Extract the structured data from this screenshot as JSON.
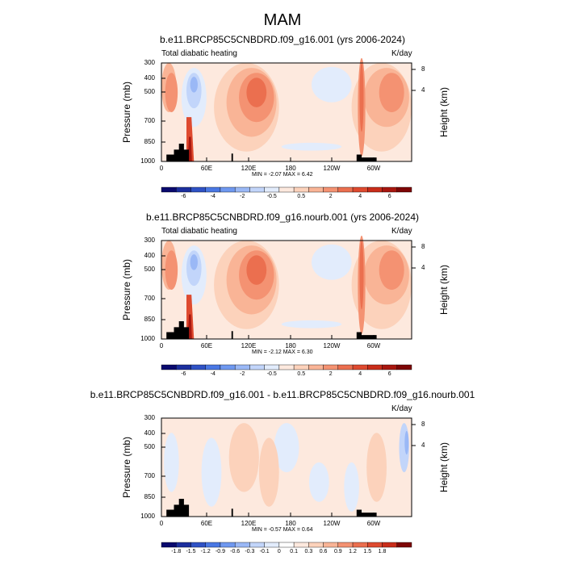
{
  "main_title": "MAM",
  "chart_data": [
    {
      "type": "heatmap",
      "title": "b.e11.BRCP85C5CNBDRD.f09_g16.001 (yrs 2006-2024)",
      "left_string": "Total diabatic heating",
      "units": "K/day",
      "ylabel": "Pressure (mb)",
      "ylabel_right": "Height (km)",
      "yticks": [
        "300",
        "400",
        "500",
        "700",
        "850",
        "1000"
      ],
      "yticks_right": [
        "8",
        "4"
      ],
      "xticks": [
        "0",
        "60E",
        "120E",
        "180",
        "120W",
        "60W"
      ],
      "minmax": "MIN =  -2.07  MAX =   6.42",
      "colorbar_labels": [
        "-6",
        "-4",
        "-2",
        "-0.5",
        "0.5",
        "2",
        "4",
        "6"
      ],
      "colorbar_colors": [
        "#0a0a6e",
        "#1c2f9e",
        "#2f52c5",
        "#4a78e4",
        "#6f98f0",
        "#9ab8f6",
        "#c2d5fa",
        "#e2ecfc",
        "#fde9de",
        "#fcd2bb",
        "#f9b496",
        "#f49272",
        "#eb6f4f",
        "#de4a2f",
        "#c92d1a",
        "#a8170f",
        "#7e0606"
      ],
      "ylim": [
        1000,
        300
      ]
    },
    {
      "type": "heatmap",
      "title": "b.e11.BRCP85C5CNBDRD.f09_g16.nourb.001 (yrs 2006-2024)",
      "left_string": "Total diabatic heating",
      "units": "K/day",
      "ylabel": "Pressure (mb)",
      "ylabel_right": "Height (km)",
      "yticks": [
        "300",
        "400",
        "500",
        "700",
        "850",
        "1000"
      ],
      "yticks_right": [
        "8",
        "4"
      ],
      "xticks": [
        "0",
        "60E",
        "120E",
        "180",
        "120W",
        "60W"
      ],
      "minmax": "MIN =  -2.12  MAX =   6.30",
      "colorbar_labels": [
        "-6",
        "-4",
        "-2",
        "-0.5",
        "0.5",
        "2",
        "4",
        "6"
      ],
      "colorbar_colors": [
        "#0a0a6e",
        "#1c2f9e",
        "#2f52c5",
        "#4a78e4",
        "#6f98f0",
        "#9ab8f6",
        "#c2d5fa",
        "#e2ecfc",
        "#fde9de",
        "#fcd2bb",
        "#f9b496",
        "#f49272",
        "#eb6f4f",
        "#de4a2f",
        "#c92d1a",
        "#a8170f",
        "#7e0606"
      ],
      "ylim": [
        1000,
        300
      ]
    },
    {
      "type": "heatmap",
      "title": "b.e11.BRCP85C5CNBDRD.f09_g16.001 - b.e11.BRCP85C5CNBDRD.f09_g16.nourb.001",
      "left_string": "",
      "units": "K/day",
      "ylabel": "Pressure (mb)",
      "ylabel_right": "Height (km)",
      "yticks": [
        "300",
        "400",
        "500",
        "700",
        "850",
        "1000"
      ],
      "yticks_right": [
        "8",
        "4"
      ],
      "xticks": [
        "0",
        "60E",
        "120E",
        "180",
        "120W",
        "60W"
      ],
      "minmax": "MIN =  -0.57  MAX =   0.64",
      "colorbar_labels": [
        "-1.8",
        "-1.5",
        "-1.2",
        "-0.9",
        "-0.6",
        "-0.3",
        "-0.1",
        "0",
        "0.1",
        "0.3",
        "0.6",
        "0.9",
        "1.2",
        "1.5",
        "1.8"
      ],
      "colorbar_colors": [
        "#0a0a6e",
        "#1c2f9e",
        "#2f52c5",
        "#4a78e4",
        "#6f98f0",
        "#9ab8f6",
        "#c2d5fa",
        "#e2ecfc",
        "#ffffff",
        "#fde9de",
        "#fcd2bb",
        "#f9b496",
        "#f49272",
        "#eb6f4f",
        "#de4a2f",
        "#c92d1a",
        "#7e0606"
      ],
      "ylim": [
        1000,
        300
      ]
    }
  ]
}
